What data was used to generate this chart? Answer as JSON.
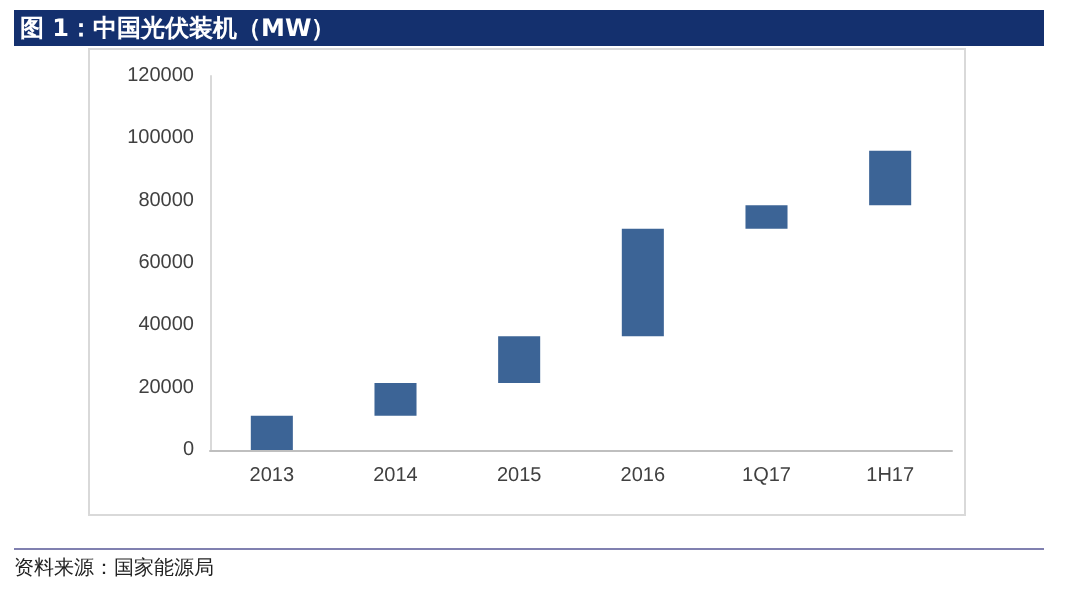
{
  "chart_data": {
    "type": "bar",
    "title": "图 1：中国光伏装机（MW）",
    "categories": [
      "2013",
      "2014",
      "2015",
      "2016",
      "1Q17",
      "1H17"
    ],
    "values": [
      11000,
      10500,
      15000,
      34500,
      7500,
      17500
    ],
    "base": [
      0,
      11000,
      21500,
      36500,
      71000,
      78500
    ],
    "color": "#3c6496",
    "ylim": [
      0,
      120000
    ],
    "yticks": [
      0,
      20000,
      40000,
      60000,
      80000,
      100000,
      120000
    ],
    "grid": false,
    "annotations": [
      "资料来源：国家能源局"
    ]
  }
}
